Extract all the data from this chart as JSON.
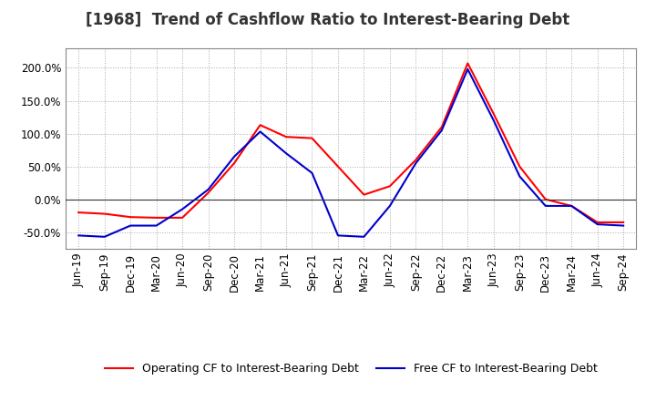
{
  "title": "[1968]  Trend of Cashflow Ratio to Interest-Bearing Debt",
  "x_labels": [
    "Jun-19",
    "Sep-19",
    "Dec-19",
    "Mar-20",
    "Jun-20",
    "Sep-20",
    "Dec-20",
    "Mar-21",
    "Jun-21",
    "Sep-21",
    "Dec-21",
    "Mar-22",
    "Jun-22",
    "Sep-22",
    "Dec-22",
    "Mar-23",
    "Jun-23",
    "Sep-23",
    "Dec-23",
    "Mar-24",
    "Jun-24",
    "Sep-24"
  ],
  "operating_cf": [
    -20.0,
    -22.0,
    -27.0,
    -28.0,
    -28.0,
    10.0,
    55.0,
    113.0,
    95.0,
    93.0,
    50.0,
    7.0,
    20.0,
    60.0,
    110.0,
    207.0,
    130.0,
    50.0,
    0.0,
    -10.0,
    -35.0,
    -35.0
  ],
  "free_cf": [
    -55.0,
    -57.0,
    -40.0,
    -40.0,
    -15.0,
    15.0,
    65.0,
    103.0,
    70.0,
    40.0,
    -55.0,
    -57.0,
    -10.0,
    55.0,
    105.0,
    198.0,
    120.0,
    35.0,
    -10.0,
    -10.0,
    -38.0,
    -40.0
  ],
  "operating_color": "#ff0000",
  "free_color": "#0000cc",
  "background_color": "#ffffff",
  "grid_color": "#aaaaaa",
  "ylim": [
    -75,
    230
  ],
  "yticks": [
    -50.0,
    0.0,
    50.0,
    100.0,
    150.0,
    200.0
  ],
  "legend_operating": "Operating CF to Interest-Bearing Debt",
  "legend_free": "Free CF to Interest-Bearing Debt",
  "title_fontsize": 12,
  "tick_fontsize": 8.5,
  "legend_fontsize": 9
}
